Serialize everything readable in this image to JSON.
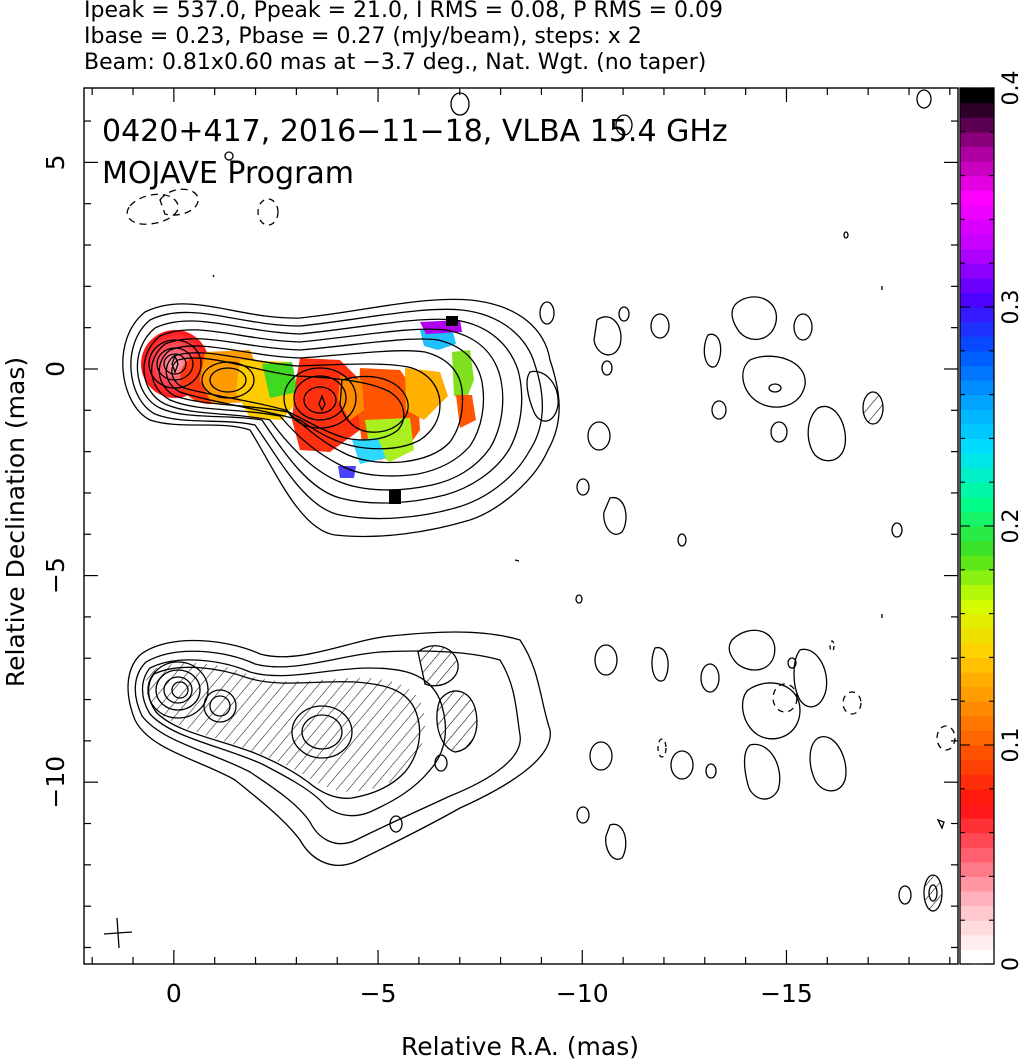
{
  "header": {
    "line1": "Ipeak = 537.0, Ppeak = 21.0, I RMS = 0.08, P RMS = 0.09",
    "line2": "Ibase = 0.23, Pbase = 0.27 (mJy/beam), steps: x 2",
    "line3": "Beam: 0.81x0.60 mas at −3.7 deg., Nat. Wgt. (no taper)"
  },
  "chart_data": {
    "type": "heatmap",
    "title": "0420+417, 2016−11−18, VLBA 15.4 GHz",
    "subtitle": "MOJAVE Program",
    "xlabel": "Relative R.A. (mas)",
    "ylabel": "Relative Declination (mas)",
    "xlim": [
      2.2,
      -19.2
    ],
    "ylim": [
      -14.4,
      6.8
    ],
    "x_ticks": [
      0,
      -5,
      -10,
      -15
    ],
    "x_tick_labels": [
      "0",
      "−5",
      "−10",
      "−15"
    ],
    "y_ticks": [
      5,
      0,
      -5,
      -10
    ],
    "y_tick_labels": [
      "5",
      "0",
      "−5",
      "−10"
    ],
    "colorbar": {
      "min": 0,
      "max": 0.4,
      "ticks": [
        0,
        0.1,
        0.2,
        0.3,
        0.4
      ],
      "tick_labels": [
        "0",
        "0.1",
        "0.2",
        "0.3",
        "0.4"
      ],
      "colors": [
        "#ffffff",
        "#ffc0c8",
        "#ff6070",
        "#ff1010",
        "#ff5000",
        "#ff9000",
        "#ffd000",
        "#d0ff00",
        "#40e020",
        "#00ff90",
        "#00e0ff",
        "#00a0ff",
        "#0050ff",
        "#5000ff",
        "#c000ff",
        "#ff00ff",
        "#a00090",
        "#000000"
      ]
    },
    "peak_position": {
      "x": 0.0,
      "y": 0.0
    },
    "lower_panel_peak": {
      "x": 0.0,
      "y": -7.9
    },
    "beam_marker": {
      "x": -1.3,
      "y": -13.7
    },
    "series": []
  }
}
